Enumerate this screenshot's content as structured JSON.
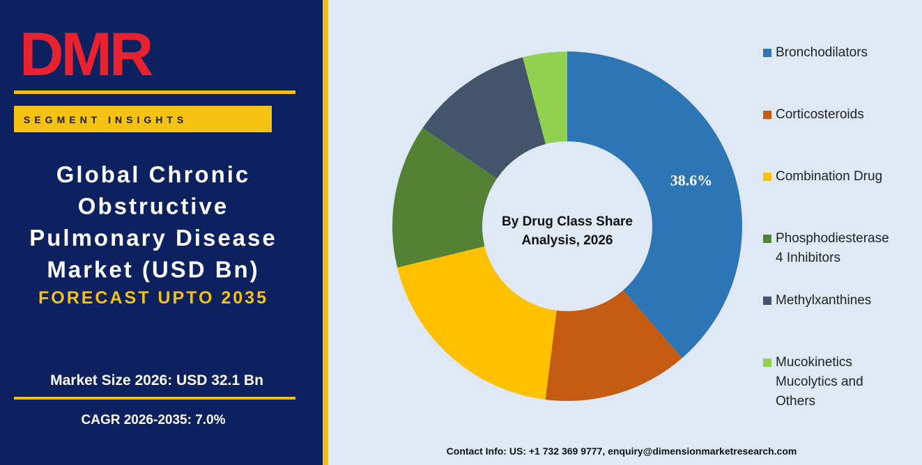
{
  "header": {
    "logo": "DMR",
    "badge": "SEGMENT INSIGHTS",
    "title": [
      "Global Chronic",
      "Obstructive",
      "Pulmonary Disease",
      "Market (USD Bn)"
    ],
    "forecast": "FORECAST UPTO 2035",
    "market_size": "Market Size 2026: USD 32.1 Bn",
    "cagr": "CAGR 2026-2035: 7.0%"
  },
  "chart_data": {
    "type": "pie",
    "donut": true,
    "center_label": [
      "By Drug Class Share",
      "Analysis, 2026"
    ],
    "categories": [
      "Bronchodilators",
      "Corticosteroids",
      "Combination Drug",
      "Phosphodiesterase 4 Inhibitors",
      "Methylxanthines",
      "Mucokinetics Mucolytics and Others"
    ],
    "values": [
      38.6,
      13.4,
      19.2,
      13.3,
      11.4,
      4.1
    ],
    "value_labels": [
      "38.6%",
      null,
      null,
      null,
      null,
      null
    ],
    "colors": [
      "#2e75b6",
      "#c55a11",
      "#ffc000",
      "#548235",
      "#44546a",
      "#92d050"
    ]
  },
  "footer": {
    "contact": "Contact Info: US: +1 732 369 9777, enquiry@dimensionmarketresearch.com"
  }
}
